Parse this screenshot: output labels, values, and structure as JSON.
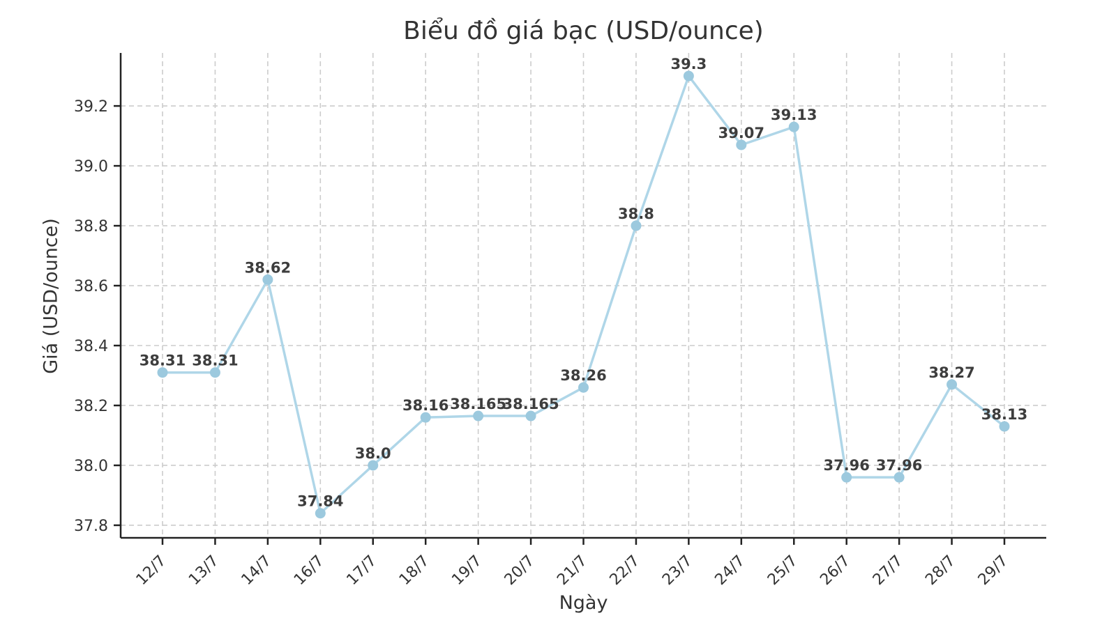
{
  "chart_data": {
    "type": "line",
    "title": "Biểu đồ giá bạc (USD/ounce)",
    "xlabel": "Ngày",
    "ylabel": "Giá (USD/ounce)",
    "categories": [
      "12/7",
      "13/7",
      "14/7",
      "16/7",
      "17/7",
      "18/7",
      "19/7",
      "20/7",
      "21/7",
      "22/7",
      "23/7",
      "24/7",
      "25/7",
      "26/7",
      "27/7",
      "28/7",
      "29/7"
    ],
    "values": [
      38.31,
      38.31,
      38.62,
      37.84,
      38.0,
      38.16,
      38.165,
      38.165,
      38.26,
      38.8,
      39.3,
      39.07,
      39.13,
      37.96,
      37.96,
      38.27,
      38.13
    ],
    "point_labels": [
      "38.31",
      "38.31",
      "38.62",
      "37.84",
      "38.0",
      "38.16",
      "38.165",
      "38.165",
      "38.26",
      "38.8",
      "39.3",
      "39.07",
      "39.13",
      "37.96",
      "37.96",
      "38.27",
      "38.13"
    ],
    "yticks": [
      37.8,
      38.0,
      38.2,
      38.4,
      38.6,
      38.8,
      39.0,
      39.2
    ],
    "ytick_labels": [
      "37.8",
      "38.0",
      "38.2",
      "38.4",
      "38.6",
      "38.8",
      "39.0",
      "39.2"
    ],
    "ylim": [
      37.758,
      39.377
    ],
    "grid": true,
    "legend": "none",
    "colors": {
      "line": "#AFD6E8",
      "marker": "#9CC9DE",
      "point_label": "#3D3D3D",
      "axis": "#222222",
      "tick_label": "#333333",
      "grid": "#CCCCCC",
      "title": "#333333",
      "background": "#FFFFFF"
    }
  }
}
